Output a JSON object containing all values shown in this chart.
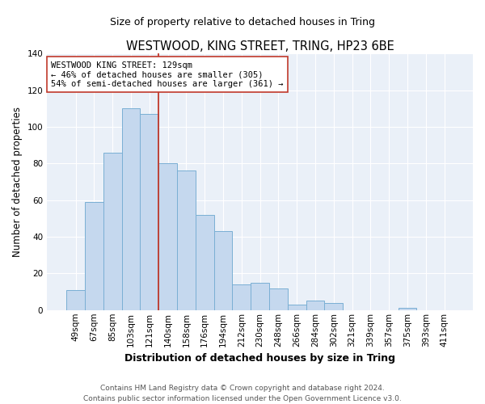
{
  "title": "WESTWOOD, KING STREET, TRING, HP23 6BE",
  "subtitle": "Size of property relative to detached houses in Tring",
  "xlabel": "Distribution of detached houses by size in Tring",
  "ylabel": "Number of detached properties",
  "bar_labels": [
    "49sqm",
    "67sqm",
    "85sqm",
    "103sqm",
    "121sqm",
    "140sqm",
    "158sqm",
    "176sqm",
    "194sqm",
    "212sqm",
    "230sqm",
    "248sqm",
    "266sqm",
    "284sqm",
    "302sqm",
    "321sqm",
    "339sqm",
    "357sqm",
    "375sqm",
    "393sqm",
    "411sqm"
  ],
  "bar_values": [
    11,
    59,
    86,
    110,
    107,
    80,
    76,
    52,
    43,
    14,
    15,
    12,
    3,
    5,
    4,
    0,
    0,
    0,
    1,
    0,
    0
  ],
  "bar_color": "#c5d8ee",
  "bar_edgecolor": "#7aafd4",
  "bar_linewidth": 0.7,
  "vline_color": "#c0392b",
  "vline_x_index": 4.5,
  "annotation_line1": "WESTWOOD KING STREET: 129sqm",
  "annotation_line2": "← 46% of detached houses are smaller (305)",
  "annotation_line3": "54% of semi-detached houses are larger (361) →",
  "annotation_box_edgecolor": "#c0392b",
  "annotation_box_facecolor": "#ffffff",
  "ylim": [
    0,
    140
  ],
  "yticks": [
    0,
    20,
    40,
    60,
    80,
    100,
    120,
    140
  ],
  "footer1": "Contains HM Land Registry data © Crown copyright and database right 2024.",
  "footer2": "Contains public sector information licensed under the Open Government Licence v3.0.",
  "bg_color": "#ffffff",
  "plot_bg_color": "#eaf0f8",
  "grid_color": "#ffffff",
  "title_fontsize": 10.5,
  "subtitle_fontsize": 9,
  "ylabel_fontsize": 8.5,
  "xlabel_fontsize": 9,
  "tick_fontsize": 7.5,
  "annotation_fontsize": 7.5,
  "footer_fontsize": 6.5
}
